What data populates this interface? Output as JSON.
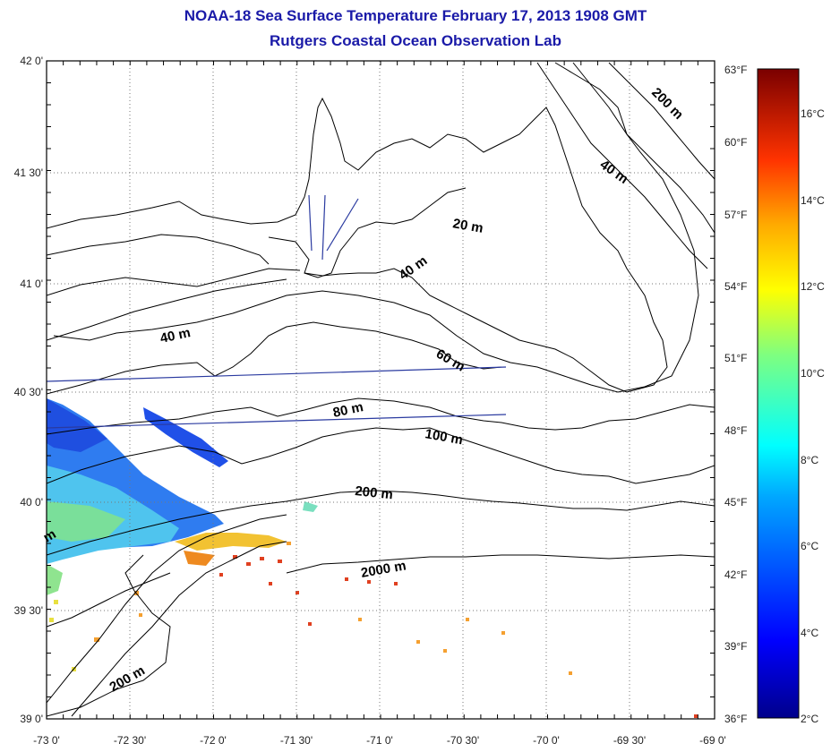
{
  "title": "NOAA-18 Sea Surface Temperature February 17, 2013 1908 GMT",
  "subtitle": "Rutgers Coastal Ocean Observation Lab",
  "lat_labels": [
    "42 0'",
    "41 30'",
    "41 0'",
    "40 30'",
    "40 0'",
    "39 30'",
    "39 0'"
  ],
  "lon_labels": [
    "-73 0'",
    "-72 30'",
    "-72 0'",
    "-71 30'",
    "-71 0'",
    "-70 30'",
    "-70 0'",
    "-69 30'",
    "-69 0'"
  ],
  "fahrenheit_labels": [
    "63°F",
    "60°F",
    "57°F",
    "54°F",
    "51°F",
    "48°F",
    "45°F",
    "42°F",
    "39°F",
    "36°F"
  ],
  "celsius_labels": [
    "16°C",
    "14°C",
    "12°C",
    "10°C",
    "8°C",
    "6°C",
    "4°C",
    "2°C"
  ],
  "contour_labels": {
    "c200_ne": "200 m",
    "c40_ne": "40 m",
    "c20": "20 m",
    "c40_mid": "40 m",
    "c40_west": "40 m",
    "c60": "60 m",
    "c80": "80 m",
    "c100": "100 m",
    "c200": "200 m",
    "c2000": "2000 m",
    "c200_sw": "200 m",
    "m_edge": "m"
  },
  "colors": {
    "title": "#1a1aa8",
    "frame": "#000000",
    "grid": "#777777"
  }
}
